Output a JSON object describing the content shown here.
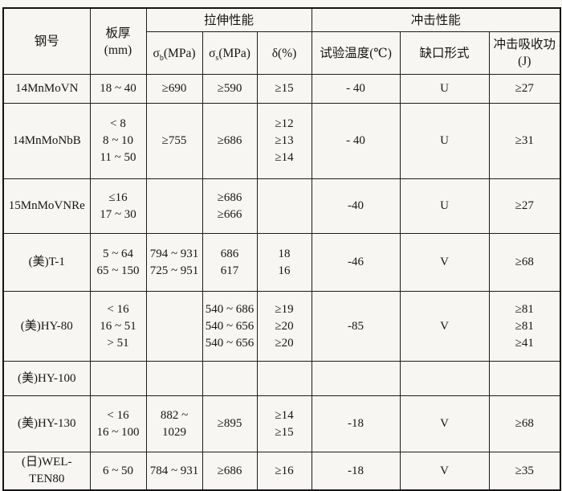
{
  "table": {
    "header": {
      "grade": "钢号",
      "thickness_line1": "板厚",
      "thickness_line2": "(mm)",
      "tensile_group": "拉伸性能",
      "impact_group": "冲击性能",
      "sigma_b": {
        "sym": "σ",
        "sub": "b",
        "unit": "(MPa)"
      },
      "sigma_s": {
        "sym": "σ",
        "sub": "s",
        "unit": "(MPa)"
      },
      "delta": "δ(%)",
      "temp": "试验温度(℃)",
      "notch": "缺口形式",
      "energy": "冲击吸收功(J)"
    },
    "rows": [
      {
        "grade": "14MnMoVN",
        "thickness": [
          "18 ~ 40"
        ],
        "sigma_b": [
          "≥690"
        ],
        "sigma_s": [
          "≥590"
        ],
        "delta": [
          "≥15"
        ],
        "temp": "- 40",
        "notch": "U",
        "energy": [
          "≥27"
        ]
      },
      {
        "grade": "14MnMoNbB",
        "thickness": [
          "< 8",
          "8 ~ 10",
          "11 ~ 50"
        ],
        "sigma_b": [
          "≥755"
        ],
        "sigma_s": [
          "≥686"
        ],
        "delta": [
          "≥12",
          "≥13",
          "≥14"
        ],
        "temp": "- 40",
        "notch": "U",
        "energy": [
          "≥31"
        ]
      },
      {
        "grade": "15MnMoVNRe",
        "thickness": [
          "≤16",
          "17 ~ 30"
        ],
        "sigma_b": [],
        "sigma_s": [
          "≥686",
          "≥666"
        ],
        "delta": [],
        "temp": "-40",
        "notch": "U",
        "energy": [
          "≥27"
        ]
      },
      {
        "grade": "(美)T-1",
        "thickness": [
          "5 ~ 64",
          "65 ~ 150"
        ],
        "sigma_b": [
          "794 ~ 931",
          "725 ~ 951"
        ],
        "sigma_s": [
          "686",
          "617"
        ],
        "delta": [
          "18",
          "16"
        ],
        "temp": "-46",
        "notch": "V",
        "energy": [
          "≥68"
        ]
      },
      {
        "grade": "(美)HY-80",
        "thickness": [
          "< 16",
          "16 ~ 51",
          "> 51"
        ],
        "sigma_b": [],
        "sigma_s": [
          "540 ~ 686",
          "540 ~ 656",
          "540 ~ 656"
        ],
        "delta": [
          "≥19",
          "≥20",
          "≥20"
        ],
        "temp": "-85",
        "notch": "V",
        "energy": [
          "≥81",
          "≥81",
          "≥41"
        ]
      },
      {
        "grade": "(美)HY-100",
        "thickness": [],
        "sigma_b": [],
        "sigma_s": [],
        "delta": [],
        "temp": "",
        "notch": "",
        "energy": []
      },
      {
        "grade": "(美)HY-130",
        "thickness": [
          "< 16",
          "16 ~ 100"
        ],
        "sigma_b": [
          "882 ~ 1029"
        ],
        "sigma_s": [
          "≥895"
        ],
        "delta": [
          "≥14",
          "≥15"
        ],
        "temp": "-18",
        "notch": "V",
        "energy": [
          "≥68"
        ]
      },
      {
        "grade": "(日)WEL-TEN80",
        "thickness": [
          "6 ~ 50"
        ],
        "sigma_b": [
          "784 ~ 931"
        ],
        "sigma_s": [
          "≥686"
        ],
        "delta": [
          "≥16"
        ],
        "temp": "-18",
        "notch": "V",
        "energy": [
          "≥35"
        ]
      }
    ]
  }
}
